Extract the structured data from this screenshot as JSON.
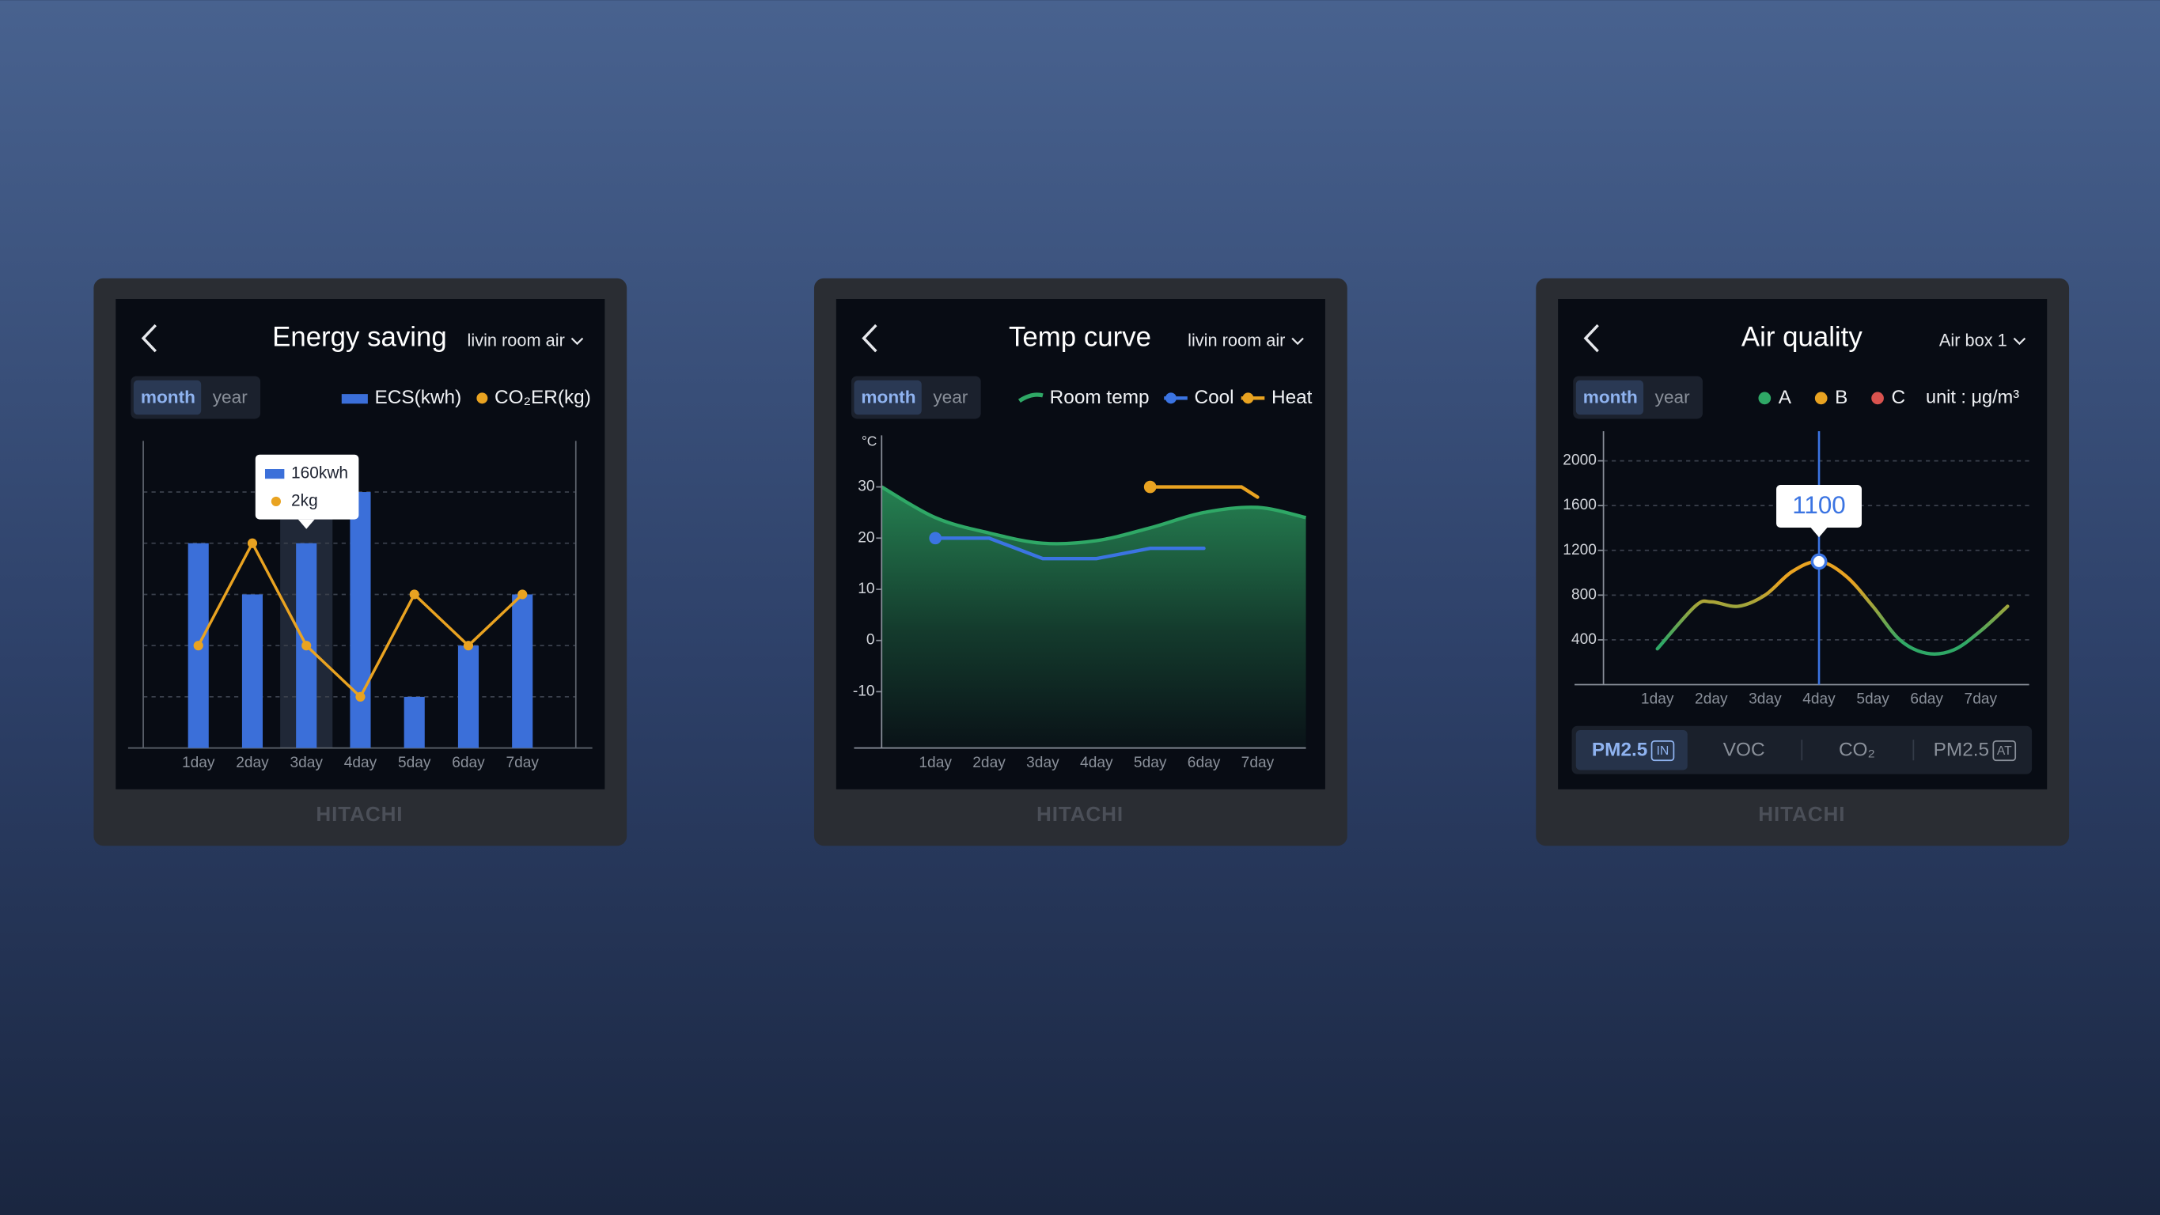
{
  "panels": [
    {
      "dropdown": "livin room air",
      "tabs": [
        "month",
        "year"
      ],
      "brand": "HITACHI"
    },
    {
      "dropdown": "livin room air",
      "tabs": [
        "month",
        "year"
      ],
      "brand": "HITACHI"
    },
    {
      "dropdown": "Air box 1",
      "tabs": [
        "month",
        "year"
      ],
      "brand": "HITACHI",
      "unit": "unit : μg/m³",
      "pollutants": [
        {
          "label": "PM2.5",
          "badge": "IN"
        },
        {
          "label": "VOC"
        },
        {
          "label": "CO₂"
        },
        {
          "label": "PM2.5",
          "badge": "AT"
        }
      ]
    }
  ],
  "chart_data": [
    {
      "type": "bar_line",
      "title": "Energy saving",
      "categories": [
        "1day",
        "2day",
        "3day",
        "4day",
        "5day",
        "6day",
        "7day"
      ],
      "series": [
        {
          "name": "ECS(kwh)",
          "type": "bar",
          "color": "#3b6fd9",
          "values": [
            160,
            120,
            160,
            200,
            40,
            80,
            120
          ],
          "value_labels": [
            null,
            null,
            "160kwh",
            null,
            null,
            null,
            null
          ]
        },
        {
          "name": "CO₂ER(kg)",
          "type": "line",
          "axis": "y2",
          "color": "#e9a321",
          "values": [
            2,
            4,
            2,
            1,
            3,
            2,
            3
          ],
          "value_labels": [
            null,
            null,
            "2kg",
            null,
            null,
            null,
            null
          ]
        }
      ],
      "ylim": [
        0,
        240
      ],
      "yticks": [
        40,
        80,
        120,
        160,
        200
      ],
      "y2lim": [
        0,
        6
      ],
      "grid": true
    },
    {
      "type": "line",
      "title": "Temp curve",
      "y_label": "°C",
      "xlim": [
        0,
        7.9
      ],
      "xticks": [
        {
          "value": 1,
          "label": "1day"
        },
        {
          "value": 2,
          "label": "2day"
        },
        {
          "value": 3,
          "label": "3day"
        },
        {
          "value": 4,
          "label": "4day"
        },
        {
          "value": 5,
          "label": "5day"
        },
        {
          "value": 6,
          "label": "6day"
        },
        {
          "value": 7,
          "label": "7day"
        }
      ],
      "ylim": [
        -21,
        39
      ],
      "yticks": [
        -10,
        0,
        10,
        20,
        30
      ],
      "grid": false,
      "series": [
        {
          "name": "Room temp",
          "type": "area",
          "smooth": true,
          "color": "#2fa866",
          "x": [
            0,
            1,
            2,
            3,
            4,
            5,
            6,
            7,
            7.9
          ],
          "values": [
            30,
            24,
            21,
            19,
            19.5,
            22,
            25,
            26,
            24
          ]
        },
        {
          "name": "Cool",
          "type": "line",
          "start_marker": true,
          "color": "#3b74e2",
          "x": [
            1,
            2,
            3,
            4,
            5,
            6
          ],
          "values": [
            20,
            20,
            16,
            16,
            18,
            18
          ]
        },
        {
          "name": "Heat",
          "type": "line",
          "start_marker": true,
          "color": "#e9a321",
          "x": [
            5,
            6,
            6.7,
            7
          ],
          "values": [
            30,
            30,
            30,
            28
          ]
        }
      ]
    },
    {
      "type": "line",
      "title": "Air quality",
      "xlim": [
        0,
        7.9
      ],
      "xticks": [
        {
          "value": 1,
          "label": "1day"
        },
        {
          "value": 2,
          "label": "2day"
        },
        {
          "value": 3,
          "label": "3day"
        },
        {
          "value": 4,
          "label": "4day"
        },
        {
          "value": 5,
          "label": "5day"
        },
        {
          "value": 6,
          "label": "6day"
        },
        {
          "value": 7,
          "label": "7day"
        }
      ],
      "ylim": [
        0,
        2240
      ],
      "yticks": [
        400,
        800,
        1200,
        1600,
        2000
      ],
      "grid": true,
      "levels": [
        {
          "name": "A",
          "color": "#2fa866"
        },
        {
          "name": "B",
          "color": "#e9a321"
        },
        {
          "name": "C",
          "color": "#d9534f"
        }
      ],
      "cursor_x": 4,
      "series": [
        {
          "type": "line",
          "smooth": true,
          "x": [
            1,
            1.7,
            2,
            2.5,
            3,
            3.5,
            4,
            4.5,
            5,
            5.5,
            6,
            6.5,
            7,
            7.5
          ],
          "values": [
            320,
            700,
            740,
            700,
            800,
            1010,
            1100,
            970,
            700,
            400,
            280,
            310,
            480,
            700
          ]
        }
      ]
    }
  ]
}
